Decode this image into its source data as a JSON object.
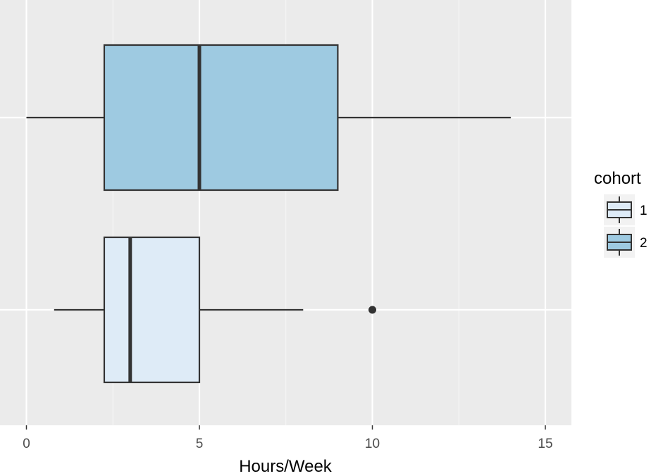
{
  "chart_data": {
    "type": "boxplot",
    "orientation": "horizontal",
    "title": "",
    "xlabel": "Hours/Week",
    "ylabel": "",
    "xlim": [
      -0.75,
      15.75
    ],
    "x_ticks": [
      0,
      5,
      10,
      15
    ],
    "x_tick_labels": [
      "0",
      "5",
      "10",
      "15"
    ],
    "grid": true,
    "legend": {
      "title": "cohort",
      "placement": "right",
      "entries": [
        {
          "label": "1",
          "color": "#deebf7"
        },
        {
          "label": "2",
          "color": "#9ecae1"
        }
      ]
    },
    "series": [
      {
        "name": "1",
        "color": "#deebf7",
        "whisker_low": 0.8,
        "q1": 2.25,
        "median": 3,
        "q3": 5,
        "whisker_high": 8,
        "outliers": [
          10
        ]
      },
      {
        "name": "2",
        "color": "#9ecae1",
        "whisker_low": 0,
        "q1": 2.25,
        "median": 5,
        "q3": 9,
        "whisker_high": 14,
        "outliers": []
      }
    ]
  },
  "colors": {
    "panel_background": "#ebebeb",
    "grid_major": "#ffffff",
    "grid_minor": "#f5f5f5",
    "box_outline": "#333333"
  }
}
